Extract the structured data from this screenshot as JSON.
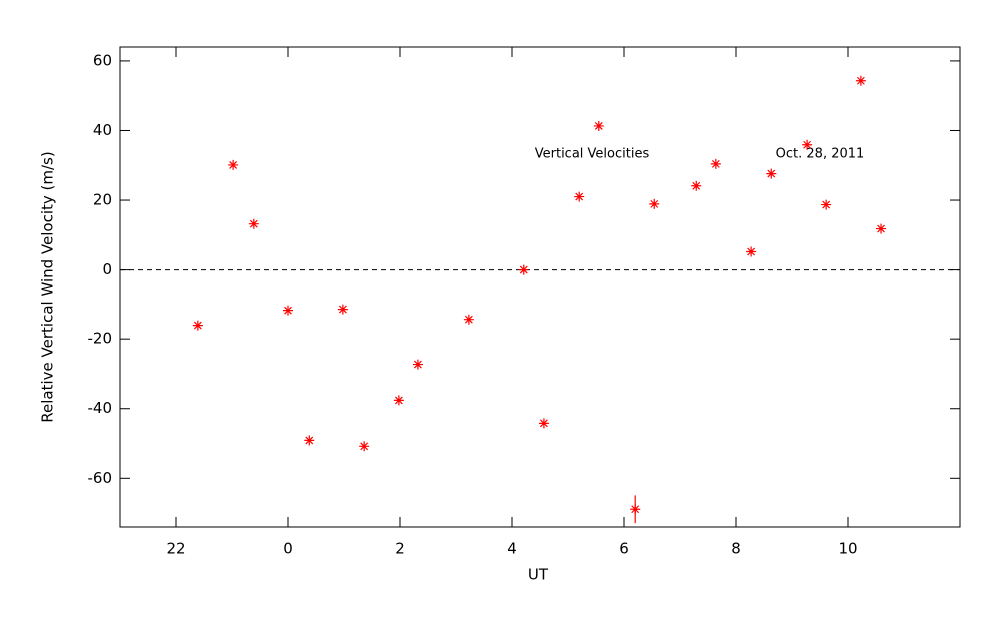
{
  "chart_data": {
    "type": "scatter",
    "xlabel": "UT",
    "ylabel": "Relative Vertical Wind Velocity (m/s)",
    "annotations": [
      "Vertical Velocities",
      "Oct. 28, 2011"
    ],
    "color": "#ff0000",
    "x": [
      -1.61,
      -0.98,
      -0.61,
      0.0,
      0.38,
      0.98,
      1.36,
      1.98,
      2.32,
      3.23,
      4.21,
      4.57,
      5.2,
      5.55,
      6.2,
      6.54,
      7.29,
      7.64,
      8.27,
      8.63,
      9.27,
      9.61,
      10.23,
      10.59
    ],
    "values": [
      -16.1,
      30.1,
      13.2,
      -11.8,
      -49.1,
      -11.5,
      -50.8,
      -37.6,
      -27.3,
      -14.4,
      0,
      -44.2,
      21.0,
      41.3,
      -68.9,
      18.9,
      24.1,
      30.4,
      5.2,
      27.6,
      35.9,
      18.7,
      54.3,
      11.8
    ],
    "errors": [
      null,
      null,
      null,
      null,
      null,
      null,
      null,
      null,
      null,
      null,
      null,
      null,
      null,
      null,
      4,
      null,
      null,
      null,
      null,
      null,
      null,
      null,
      null,
      null
    ],
    "xlim": [
      -3,
      12
    ],
    "ylim": [
      -74,
      64
    ],
    "xticks": [
      {
        "value": -2,
        "label": "22"
      },
      0,
      2,
      4,
      6,
      8,
      10
    ],
    "yticks": [
      -60,
      -40,
      -20,
      0,
      20,
      40,
      60
    ],
    "hline": 0
  }
}
